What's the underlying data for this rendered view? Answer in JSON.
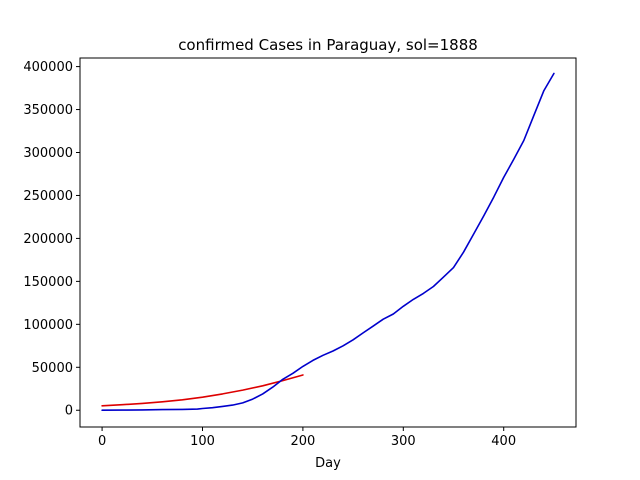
{
  "chart_data": {
    "type": "line",
    "title": "confirmed Cases in Paraguay, sol=1888",
    "xlabel": "Day",
    "ylabel": "",
    "xlim": [
      -22,
      472
    ],
    "ylim": [
      -19500,
      410000
    ],
    "xticks": [
      0,
      100,
      200,
      300,
      400
    ],
    "yticks": [
      0,
      50000,
      100000,
      150000,
      200000,
      250000,
      300000,
      350000,
      400000
    ],
    "grid": false,
    "series": [
      {
        "color": "#dd0000",
        "x": [
          0,
          20,
          40,
          60,
          80,
          100,
          120,
          140,
          160,
          180,
          200
        ],
        "y": [
          5200,
          6500,
          8000,
          9800,
          12200,
          15200,
          19000,
          23500,
          28500,
          34500,
          41000
        ]
      },
      {
        "color": "#0000cc",
        "x": [
          0,
          20,
          40,
          60,
          80,
          95,
          100,
          110,
          120,
          130,
          140,
          150,
          160,
          170,
          180,
          190,
          200,
          210,
          220,
          230,
          240,
          250,
          260,
          270,
          280,
          290,
          300,
          310,
          320,
          330,
          340,
          350,
          360,
          370,
          380,
          390,
          400,
          410,
          420,
          430,
          440,
          450
        ],
        "y": [
          0,
          200,
          400,
          700,
          1000,
          1300,
          2000,
          3000,
          4500,
          6000,
          8500,
          13000,
          19000,
          27000,
          36000,
          43000,
          51000,
          58000,
          64000,
          69000,
          75000,
          82000,
          90000,
          98000,
          106000,
          112000,
          121000,
          129000,
          136000,
          144000,
          155000,
          166000,
          184000,
          205000,
          226000,
          248000,
          271000,
          292000,
          314000,
          343000,
          372000,
          392000
        ]
      }
    ]
  }
}
